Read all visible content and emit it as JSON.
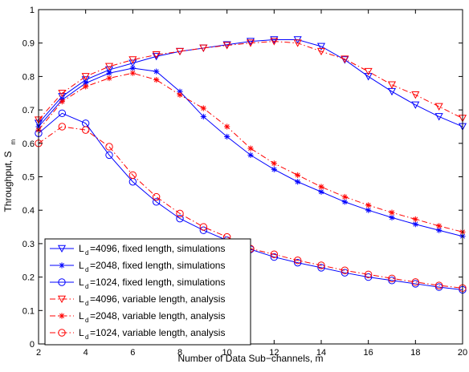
{
  "chart_data": {
    "type": "line",
    "title": "",
    "xlabel": "Number of Data Sub−channels, m",
    "ylabel_main": "Throughput, S",
    "ylabel_sub": "m",
    "xlim": [
      2,
      20
    ],
    "ylim": [
      0,
      1
    ],
    "x_ticks": [
      2,
      4,
      6,
      8,
      10,
      12,
      14,
      16,
      18,
      20
    ],
    "y_ticks": [
      0,
      0.1,
      0.2,
      0.3,
      0.4,
      0.5,
      0.6,
      0.7,
      0.8,
      0.9,
      1
    ],
    "y_tick_labels": [
      "0",
      "0.1",
      "0.2",
      "0.3",
      "0.4",
      "0.5",
      "0.6",
      "0.7",
      "0.8",
      "0.9",
      "1"
    ],
    "grid": false,
    "legend_position": "bottom-left",
    "x": [
      2,
      3,
      4,
      5,
      6,
      7,
      8,
      9,
      10,
      11,
      12,
      13,
      14,
      15,
      16,
      17,
      18,
      19,
      20
    ],
    "series": [
      {
        "name_main": "L",
        "name_sub": "d",
        "name_rest": "=4096, fixed length, simulations",
        "color": "#0000ff",
        "dash": "solid",
        "marker": "triangle-down",
        "values": [
          0.66,
          0.74,
          0.79,
          0.82,
          0.84,
          0.86,
          0.875,
          0.885,
          0.895,
          0.905,
          0.91,
          0.91,
          0.89,
          0.85,
          0.8,
          0.755,
          0.715,
          0.68,
          0.65
        ]
      },
      {
        "name_main": "L",
        "name_sub": "d",
        "name_rest": "=2048, fixed length, simulations",
        "color": "#0000ff",
        "dash": "solid",
        "marker": "star",
        "values": [
          0.65,
          0.73,
          0.78,
          0.81,
          0.825,
          0.815,
          0.755,
          0.68,
          0.62,
          0.565,
          0.522,
          0.485,
          0.455,
          0.425,
          0.4,
          0.378,
          0.358,
          0.34,
          0.322
        ]
      },
      {
        "name_main": "L",
        "name_sub": "d",
        "name_rest": "=1024, fixed length, simulations",
        "color": "#0000ff",
        "dash": "solid",
        "marker": "circle",
        "values": [
          0.63,
          0.69,
          0.66,
          0.565,
          0.485,
          0.425,
          0.375,
          0.34,
          0.31,
          0.283,
          0.26,
          0.243,
          0.228,
          0.213,
          0.2,
          0.19,
          0.18,
          0.17,
          0.162
        ]
      },
      {
        "name_main": "L",
        "name_sub": "d",
        "name_rest": "=4096, variable length, analysis",
        "color": "#ff0000",
        "dash": "dashdot",
        "marker": "triangle-down",
        "values": [
          0.67,
          0.75,
          0.8,
          0.83,
          0.85,
          0.865,
          0.875,
          0.885,
          0.893,
          0.9,
          0.905,
          0.9,
          0.875,
          0.852,
          0.815,
          0.775,
          0.745,
          0.71,
          0.675
        ]
      },
      {
        "name_main": "L",
        "name_sub": "d",
        "name_rest": "=2048, variable length, analysis",
        "color": "#ff0000",
        "dash": "dashdot",
        "marker": "star",
        "values": [
          0.64,
          0.725,
          0.77,
          0.795,
          0.81,
          0.79,
          0.745,
          0.705,
          0.65,
          0.585,
          0.54,
          0.505,
          0.47,
          0.44,
          0.415,
          0.393,
          0.373,
          0.353,
          0.335
        ]
      },
      {
        "name_main": "L",
        "name_sub": "d",
        "name_rest": "=1024, variable length, analysis",
        "color": "#ff0000",
        "dash": "dashdot",
        "marker": "circle",
        "values": [
          0.6,
          0.65,
          0.64,
          0.59,
          0.505,
          0.44,
          0.39,
          0.35,
          0.32,
          0.285,
          0.268,
          0.25,
          0.235,
          0.22,
          0.208,
          0.196,
          0.185,
          0.175,
          0.167
        ]
      }
    ]
  }
}
